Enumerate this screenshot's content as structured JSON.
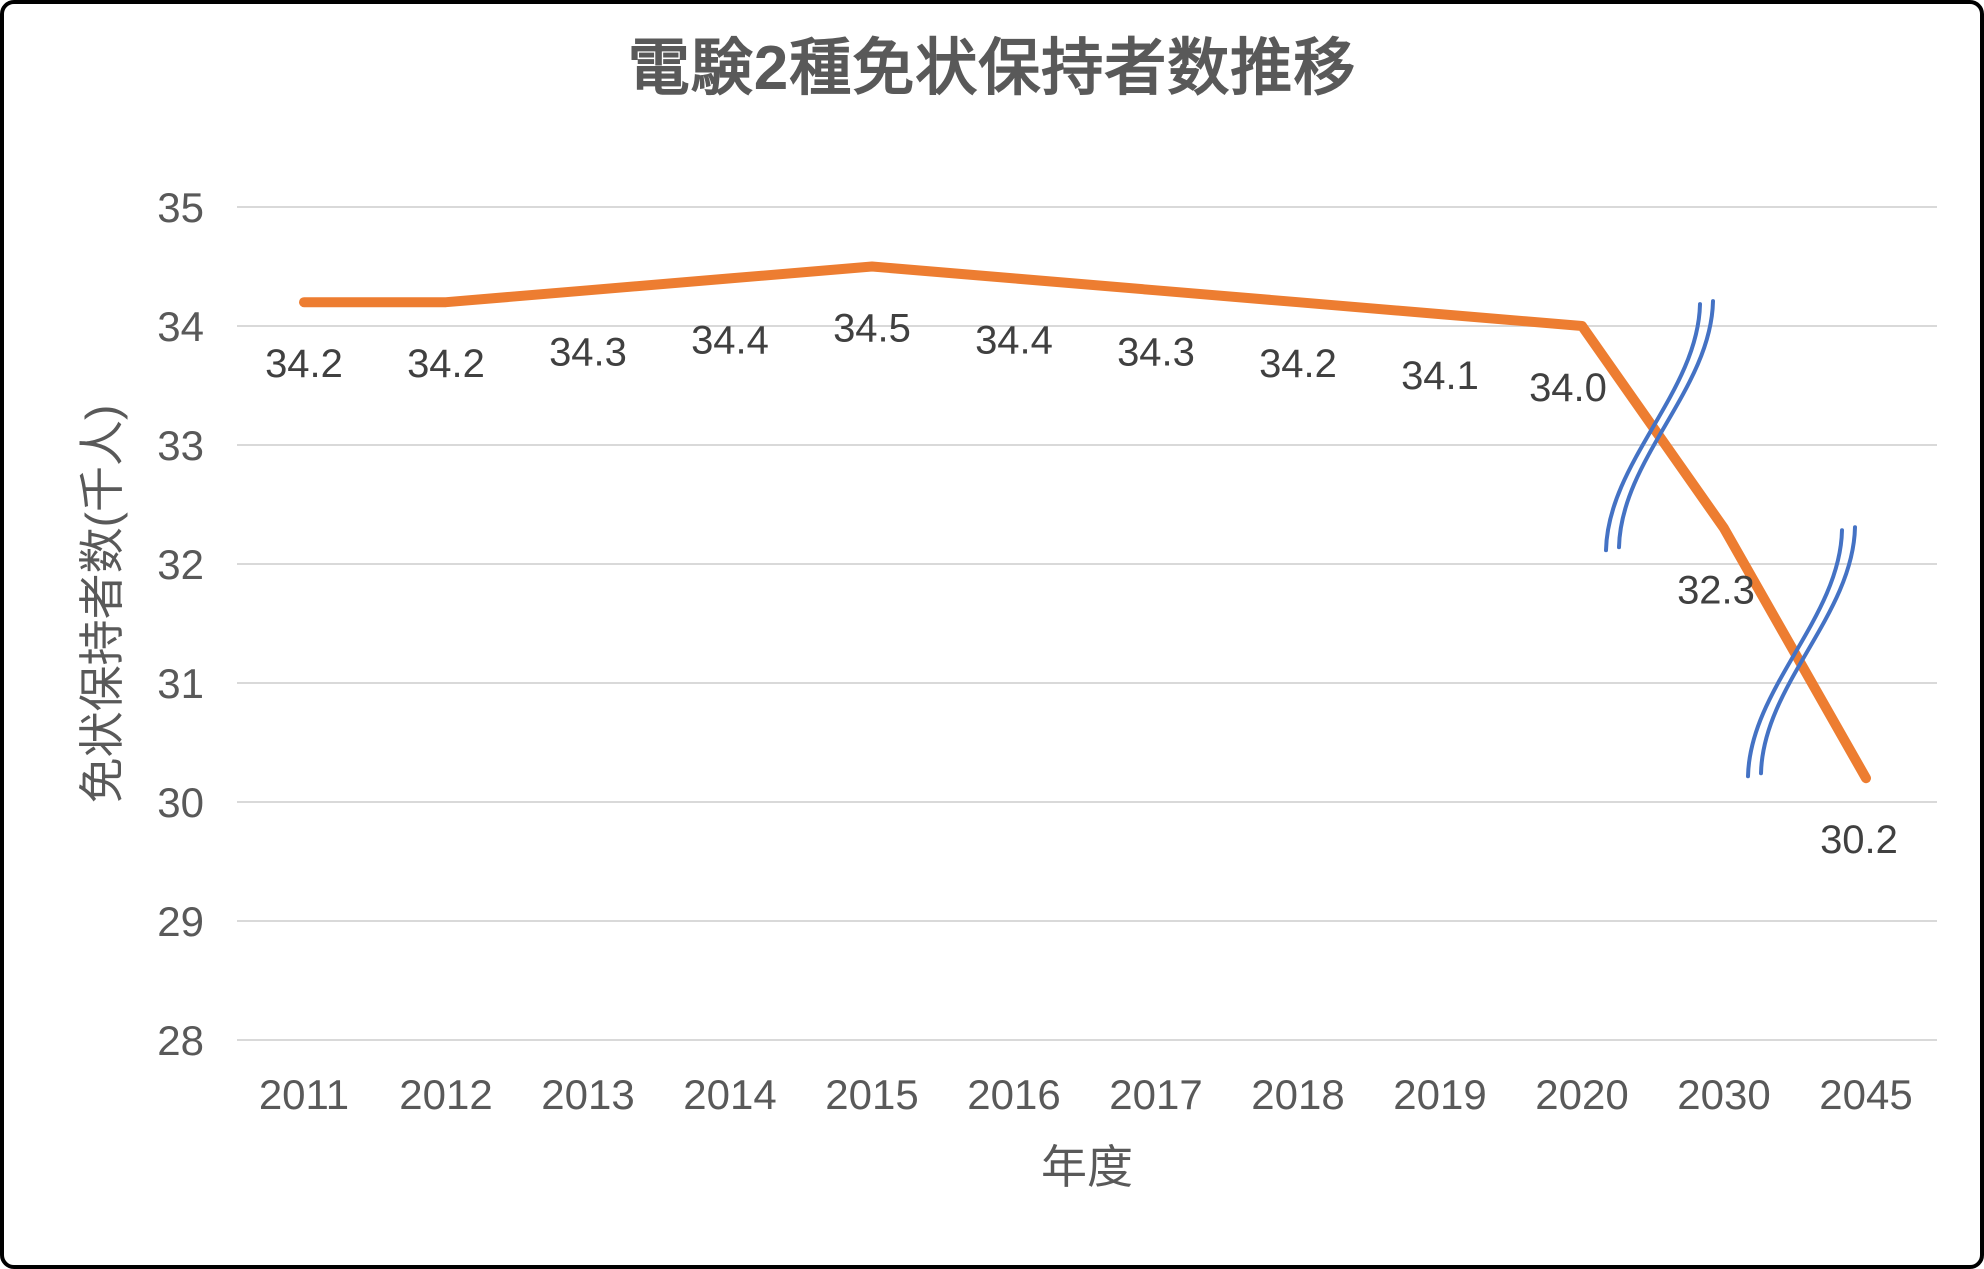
{
  "chart_data": {
    "type": "line",
    "title": "電験2種免状保持者数推移",
    "xlabel": "年度",
    "ylabel": "免状保持者数(千人)",
    "categories": [
      "2011",
      "2012",
      "2013",
      "2014",
      "2015",
      "2016",
      "2017",
      "2018",
      "2019",
      "2020",
      "2030",
      "2045"
    ],
    "values": [
      34.2,
      34.2,
      34.3,
      34.4,
      34.5,
      34.4,
      34.3,
      34.2,
      34.1,
      34.0,
      32.3,
      30.2
    ],
    "data_labels": [
      "34.2",
      "34.2",
      "34.3",
      "34.4",
      "34.5",
      "34.4",
      "34.3",
      "34.2",
      "34.1",
      "34.0",
      "32.3",
      "30.2"
    ],
    "data_labels_position": "below",
    "ylim": [
      28,
      35
    ],
    "yticks": [
      35,
      34,
      33,
      32,
      31,
      30,
      29,
      28
    ],
    "grid": "horizontal",
    "legend": "none",
    "line_color": "#ED7D31",
    "gridline_color": "#D9D9D9",
    "tick_color": "#595959",
    "title_color": "#595959",
    "data_label_color": "#404040",
    "axis_breaks": {
      "color": "#4472C4",
      "between": [
        [
          "2020",
          "2030"
        ],
        [
          "2030",
          "2045"
        ]
      ]
    }
  }
}
